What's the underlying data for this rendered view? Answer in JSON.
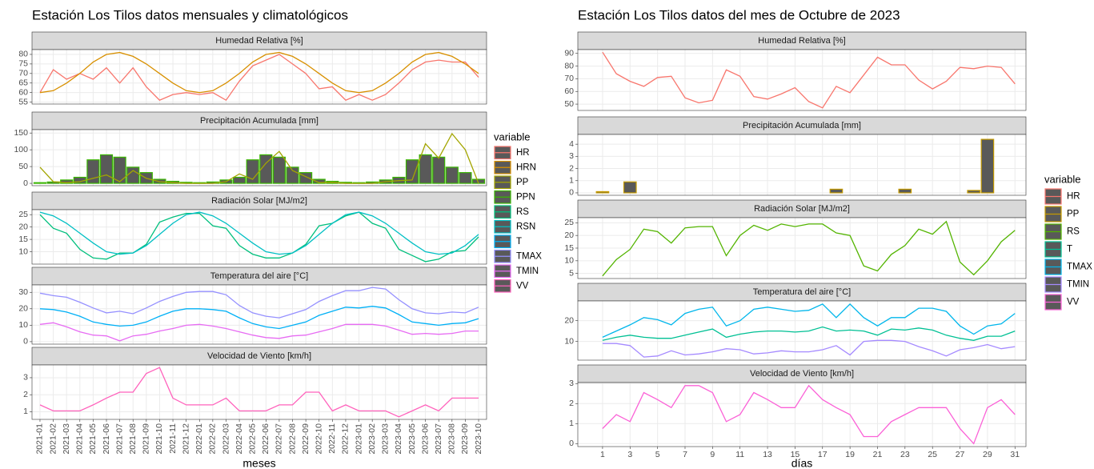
{
  "chart_data": [
    {
      "type": "facet",
      "title": "Estación Los Tilos datos mensuales y climatológicos",
      "x_label": "meses",
      "legend_title": "variable",
      "bar_fill": "#595959",
      "categories": [
        "2021-01",
        "2021-02",
        "2021-03",
        "2021-04",
        "2021-05",
        "2021-06",
        "2021-07",
        "2021-08",
        "2021-09",
        "2021-10",
        "2021-11",
        "2021-12",
        "2022-01",
        "2022-02",
        "2022-03",
        "2022-04",
        "2022-05",
        "2022-06",
        "2022-07",
        "2022-08",
        "2022-09",
        "2022-10",
        "2022-11",
        "2022-12",
        "2023-01",
        "2023-02",
        "2023-03",
        "2023-04",
        "2023-05",
        "2023-06",
        "2023-07",
        "2023-08",
        "2023-09",
        "2023-10"
      ],
      "panels": [
        {
          "type": "line",
          "title": "Humedad Relativa [%]",
          "ylim": [
            54,
            82.5
          ],
          "yticks": [
            55,
            60,
            65,
            70,
            75,
            80
          ],
          "series": [
            {
              "name": "HR",
              "color": "#F8766D",
              "values": [
                60,
                72,
                67,
                70,
                67,
                73,
                65,
                73,
                63,
                56,
                59,
                60,
                59,
                60,
                56,
                66,
                74,
                77,
                80,
                75,
                70,
                62,
                63,
                56,
                59,
                56,
                59,
                65,
                72,
                76,
                77,
                76,
                76,
                68
              ]
            },
            {
              "name": "HRN",
              "color": "#D89000",
              "values": [
                60,
                61,
                65,
                70,
                76,
                80,
                81,
                79,
                75,
                70,
                65,
                61,
                60,
                61,
                65,
                70,
                76,
                80,
                81,
                79,
                75,
                70,
                65,
                61,
                60,
                61,
                65,
                70,
                76,
                80,
                81,
                79,
                75,
                70
              ]
            }
          ]
        },
        {
          "type": "line",
          "title": "Precipitación Acumulada [mm]",
          "ylim": [
            -7,
            160
          ],
          "yticks": [
            0,
            50,
            100,
            150
          ],
          "series": [
            {
              "name": "PP",
              "color": "#A3A500",
              "values": [
                48,
                5,
                2,
                5,
                15,
                25,
                5,
                38,
                15,
                5,
                2,
                0,
                0,
                0,
                5,
                28,
                12,
                60,
                95,
                38,
                20,
                2,
                3,
                0,
                0,
                0,
                5,
                8,
                10,
                118,
                75,
                148,
                100,
                0
              ]
            },
            {
              "name": "PPN",
              "color": "#39B600",
              "geom": "bar",
              "values": [
                2,
                4,
                10,
                18,
                70,
                85,
                78,
                48,
                32,
                12,
                6,
                3,
                2,
                4,
                10,
                18,
                70,
                85,
                78,
                48,
                32,
                12,
                6,
                3,
                2,
                4,
                10,
                18,
                70,
                85,
                78,
                48,
                32,
                12
              ]
            }
          ]
        },
        {
          "type": "line",
          "title": "Radiación Solar [MJ/m2]",
          "ylim": [
            5,
            27
          ],
          "yticks": [
            10,
            15,
            20,
            25
          ],
          "series": [
            {
              "name": "RS",
              "color": "#00BF7D",
              "values": [
                25,
                19.5,
                17.5,
                11,
                7.5,
                7,
                9.5,
                9.5,
                13,
                22,
                24,
                25.5,
                25.5,
                20.5,
                19.5,
                12.5,
                9,
                7.5,
                7.5,
                9.5,
                13,
                20.5,
                21.5,
                24.5,
                26,
                21.5,
                19.5,
                11,
                8.5,
                6,
                7,
                10,
                10.5,
                16
              ]
            },
            {
              "name": "RSN",
              "color": "#00BFC4",
              "values": [
                26,
                24.5,
                21.5,
                17.5,
                13.5,
                10,
                9,
                9.5,
                12.5,
                17,
                21.5,
                25,
                26,
                24.5,
                21.5,
                17.5,
                13.5,
                10,
                9,
                9.5,
                12.5,
                17,
                21.5,
                25,
                26,
                24.5,
                21.5,
                17.5,
                13.5,
                10,
                9,
                9.5,
                12.5,
                17
              ]
            }
          ]
        },
        {
          "type": "line",
          "title": "Temperatura del aire [°C]",
          "ylim": [
            -1.5,
            34.5
          ],
          "yticks": [
            0,
            10,
            20,
            30
          ],
          "series": [
            {
              "name": "T",
              "color": "#00B0F6",
              "values": [
                20,
                19.5,
                18,
                15.5,
                12,
                10.5,
                9.5,
                10,
                12,
                15.5,
                18.5,
                20,
                20,
                19.5,
                18.5,
                14.5,
                11,
                9,
                8,
                10,
                12,
                16,
                18.5,
                21,
                20.5,
                21.5,
                20.5,
                16.5,
                12,
                11,
                10,
                11,
                11.5,
                14
              ]
            },
            {
              "name": "TMAX",
              "color": "#9590FF",
              "values": [
                29.5,
                28,
                27,
                24,
                20.5,
                17.5,
                18.5,
                17,
                20.5,
                24.5,
                27.5,
                30,
                30.5,
                30.5,
                28.5,
                22,
                17.5,
                15.5,
                14.5,
                17,
                19.5,
                24.5,
                28,
                31,
                31,
                33,
                32,
                25.5,
                20,
                17.5,
                17,
                18,
                17.5,
                21
              ]
            },
            {
              "name": "TMIN",
              "color": "#E76BF3",
              "values": [
                10.5,
                11.5,
                9,
                6,
                4,
                3.5,
                0.5,
                3.5,
                4.5,
                6.5,
                8,
                10,
                10.5,
                9.5,
                8,
                6,
                4,
                2.5,
                2,
                3.5,
                4,
                6,
                8,
                10.5,
                10.5,
                10.5,
                9.5,
                7,
                4.5,
                5,
                4.5,
                5,
                6.5,
                6.5
              ]
            }
          ]
        },
        {
          "type": "line",
          "title": "Velocidad de Viento [km/h]",
          "ylim": [
            0.55,
            3.75
          ],
          "yticks": [
            1,
            2,
            3
          ],
          "series": [
            {
              "name": "VV",
              "color": "#FF62BC",
              "values": [
                1.4,
                1.05,
                1.05,
                1.05,
                1.4,
                1.8,
                2.15,
                2.15,
                3.25,
                3.6,
                1.8,
                1.4,
                1.4,
                1.4,
                1.8,
                1.05,
                1.05,
                1.05,
                1.4,
                1.4,
                2.15,
                2.15,
                1.05,
                1.4,
                1.05,
                1.05,
                1.05,
                0.7,
                1.05,
                1.4,
                1.05,
                1.8,
                1.8,
                1.8
              ]
            }
          ]
        }
      ]
    },
    {
      "type": "facet",
      "title": "Estación Los Tilos datos del mes de Octubre de 2023",
      "x_label": "días",
      "legend_title": "variable",
      "bar_fill": "#595959",
      "x": [
        1,
        2,
        3,
        4,
        5,
        6,
        7,
        8,
        9,
        10,
        11,
        12,
        13,
        14,
        15,
        16,
        17,
        18,
        19,
        20,
        21,
        22,
        23,
        24,
        25,
        26,
        27,
        28,
        29,
        30,
        31
      ],
      "xlim": [
        -0.8,
        31.8
      ],
      "xticks": [
        1,
        3,
        5,
        7,
        9,
        11,
        13,
        15,
        17,
        19,
        21,
        23,
        25,
        27,
        29,
        31
      ],
      "panels": [
        {
          "type": "line",
          "title": "Humedad Relativa [%]",
          "ylim": [
            45,
            93
          ],
          "yticks": [
            50,
            60,
            70,
            80,
            90
          ],
          "series": [
            {
              "name": "HR",
              "color": "#F8766D",
              "values": [
                91,
                74,
                68,
                64,
                71,
                72,
                55,
                51,
                53,
                77,
                72,
                56,
                54,
                58,
                63,
                52,
                47,
                64,
                59,
                73,
                87,
                81,
                81,
                69,
                62,
                68,
                79,
                78,
                80,
                79,
                66
              ]
            }
          ]
        },
        {
          "type": "line",
          "title": "Precipitación Acumulada [mm]",
          "ylim": [
            -0.2,
            4.8
          ],
          "yticks": [
            0,
            1,
            2,
            3,
            4
          ],
          "series": [
            {
              "name": "PP",
              "color": "#C49A00",
              "geom": "bar",
              "values": [
                0.1,
                0,
                0.9,
                0,
                0,
                0,
                0,
                0,
                0,
                0,
                0,
                0,
                0,
                0,
                0,
                0,
                0,
                0.3,
                0,
                0,
                0,
                0,
                0.3,
                0,
                0,
                0,
                0,
                0.2,
                4.4,
                0,
                0
              ]
            }
          ]
        },
        {
          "type": "line",
          "title": "Radiación Solar [MJ/m2]",
          "ylim": [
            3,
            27
          ],
          "yticks": [
            5,
            10,
            15,
            20,
            25
          ],
          "series": [
            {
              "name": "RS",
              "color": "#53B400",
              "values": [
                4,
                10.5,
                14.5,
                22.5,
                21.5,
                17,
                23,
                23.5,
                23.5,
                12,
                20,
                24,
                22,
                24.5,
                23.5,
                24.5,
                24.5,
                21,
                20,
                8,
                6,
                12.5,
                16,
                22.5,
                20.5,
                25.5,
                9.5,
                4.5,
                10,
                17.5,
                22
              ]
            }
          ]
        },
        {
          "type": "line",
          "title": "Temperatura del aire [°C]",
          "ylim": [
            1,
            29.5
          ],
          "yticks": [
            10,
            20
          ],
          "series": [
            {
              "name": "T",
              "color": "#00C094",
              "values": [
                10.5,
                12,
                13,
                12,
                11.5,
                11.5,
                13,
                14.5,
                16,
                12,
                13.5,
                14.5,
                15,
                15,
                14.5,
                15,
                17,
                15,
                15.5,
                15,
                13,
                16,
                15.5,
                16.5,
                15.5,
                13,
                11.5,
                10.5,
                12.5,
                12.5,
                15
              ]
            },
            {
              "name": "TMAX",
              "color": "#00B6EB",
              "values": [
                12,
                15,
                18,
                21.5,
                20.5,
                18,
                23.5,
                25.5,
                26.5,
                17.5,
                20,
                25.5,
                26.5,
                25.5,
                24.5,
                25,
                28,
                21.5,
                28,
                21.5,
                17.5,
                21.5,
                21.5,
                26,
                26,
                24.5,
                17.5,
                13.5,
                17.5,
                18.5,
                23.5
              ]
            },
            {
              "name": "TMIN",
              "color": "#A58AFF",
              "values": [
                9,
                9,
                8,
                2.5,
                3,
                5.5,
                3.5,
                4,
                5,
                6.5,
                6,
                4,
                4.5,
                5.5,
                5,
                5,
                6,
                8,
                3.5,
                10,
                10.5,
                10.5,
                10,
                7.5,
                5.5,
                3,
                6,
                7,
                8.5,
                6.5,
                7.5
              ]
            }
          ]
        },
        {
          "type": "line",
          "title": "Velocidad de Viento [km/h]",
          "ylim": [
            -0.15,
            3.05
          ],
          "yticks": [
            0,
            1,
            2,
            3
          ],
          "series": [
            {
              "name": "VV",
              "color": "#FB61D7",
              "values": [
                0.75,
                1.45,
                1.1,
                2.55,
                2.2,
                1.8,
                2.9,
                2.9,
                2.55,
                1.1,
                1.45,
                2.55,
                2.2,
                1.8,
                1.8,
                2.9,
                2.2,
                1.8,
                1.45,
                0.35,
                0.35,
                1.1,
                1.45,
                1.8,
                1.8,
                1.8,
                0.75,
                0,
                1.8,
                2.2,
                1.45
              ]
            }
          ]
        }
      ]
    }
  ]
}
